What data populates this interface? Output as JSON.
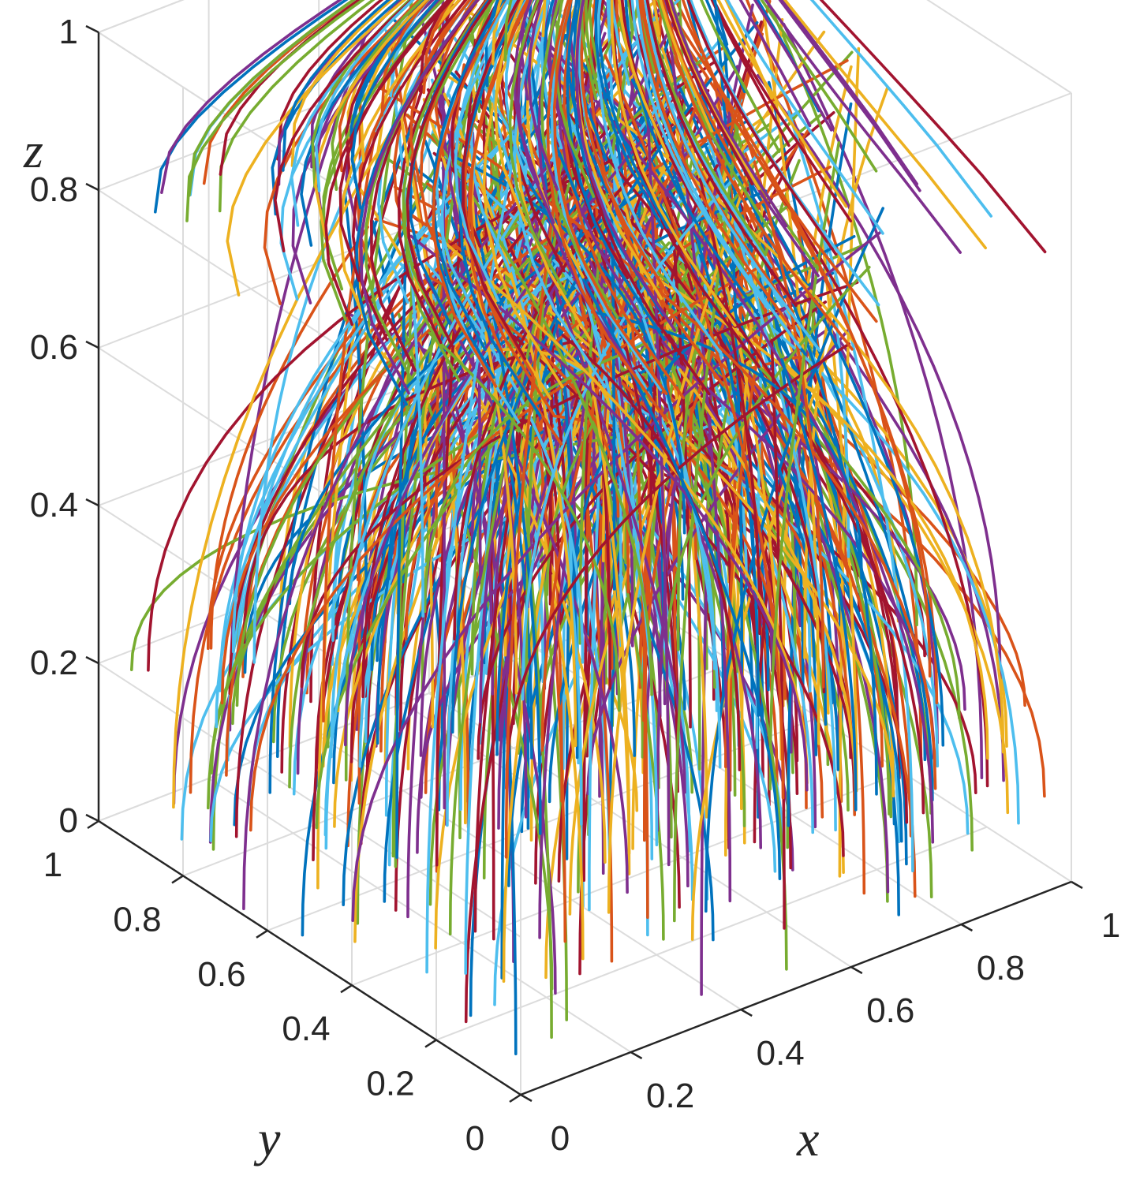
{
  "chart_data": {
    "type": "line3d",
    "title": "",
    "xlabel": "x",
    "ylabel": "y",
    "zlabel": "z",
    "xlim": [
      0,
      1
    ],
    "ylim": [
      0,
      1
    ],
    "zlim": [
      0,
      1
    ],
    "x_ticks": [
      "0",
      "0.2",
      "0.4",
      "0.6",
      "0.8",
      "1"
    ],
    "y_ticks": [
      "0",
      "0.2",
      "0.4",
      "0.6",
      "0.8",
      "1"
    ],
    "z_ticks": [
      "0",
      "0.2",
      "0.4",
      "0.6",
      "0.8",
      "1"
    ],
    "grid": true,
    "colors": [
      "#0072BD",
      "#D95319",
      "#EDB120",
      "#7E2F8E",
      "#77AC30",
      "#4DBEEE",
      "#A2142F"
    ],
    "description_of_series": "dense field of trajectories converging toward the upper back corner of the unit cube",
    "trajectories": [
      {
        "start": [
          0.1,
          0.1,
          0.0
        ],
        "end": [
          0.95,
          0.95,
          1.0
        ]
      },
      {
        "start": [
          0.3,
          0.2,
          0.0
        ],
        "end": [
          0.95,
          0.95,
          1.0
        ]
      },
      {
        "start": [
          0.5,
          0.1,
          0.0
        ],
        "end": [
          0.95,
          0.95,
          1.0
        ]
      },
      {
        "start": [
          0.7,
          0.3,
          0.0
        ],
        "end": [
          0.95,
          0.95,
          1.0
        ]
      },
      {
        "start": [
          0.9,
          0.1,
          0.0
        ],
        "end": [
          0.95,
          0.95,
          1.0
        ]
      },
      {
        "start": [
          0.1,
          0.5,
          0.0
        ],
        "end": [
          0.95,
          0.95,
          1.0
        ]
      },
      {
        "start": [
          0.4,
          0.6,
          0.0
        ],
        "end": [
          0.95,
          0.95,
          1.0
        ]
      },
      {
        "start": [
          0.8,
          0.7,
          0.0
        ],
        "end": [
          0.95,
          0.95,
          1.0
        ]
      },
      {
        "start": [
          0.2,
          0.9,
          0.0
        ],
        "end": [
          0.95,
          0.95,
          1.0
        ]
      },
      {
        "start": [
          0.6,
          0.9,
          0.0
        ],
        "end": [
          0.95,
          0.95,
          1.0
        ]
      }
    ]
  }
}
